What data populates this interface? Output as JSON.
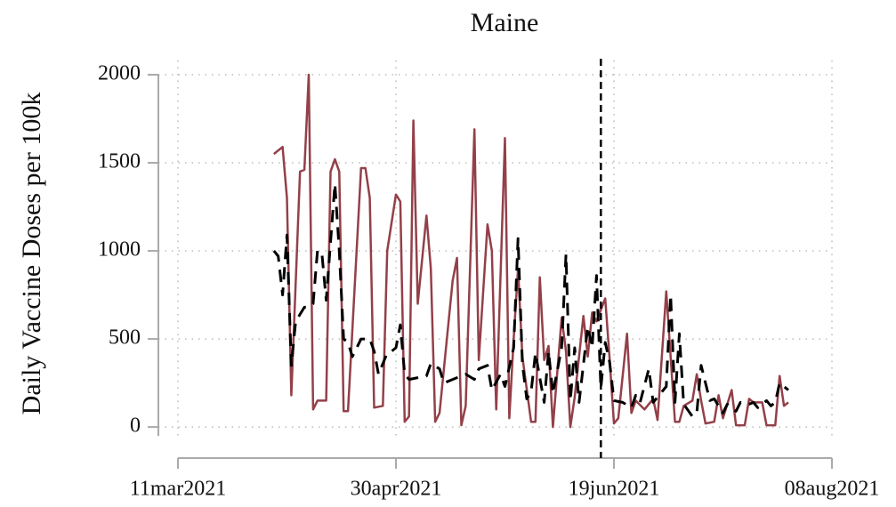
{
  "chart_data": {
    "type": "line",
    "title": "Maine",
    "y_label": "Daily Vaccine Doses per 100k",
    "xlim": [
      "2021-03-11",
      "2021-08-08"
    ],
    "xticks": [
      {
        "value": "2021-03-11",
        "label": "11mar2021"
      },
      {
        "value": "2021-04-30",
        "label": "30apr2021"
      },
      {
        "value": "2021-06-19",
        "label": "19jun2021"
      },
      {
        "value": "2021-08-08",
        "label": "08aug2021"
      }
    ],
    "ylim": [
      -50,
      2000
    ],
    "yticks": [
      0,
      500,
      1000,
      1500,
      2000
    ],
    "grid": true,
    "vline": "2021-06-16",
    "series": [
      {
        "color": "#934049",
        "dash": false,
        "x": [
          "2021-04-02",
          "2021-04-04",
          "2021-04-05",
          "2021-04-06",
          "2021-04-08",
          "2021-04-09",
          "2021-04-10",
          "2021-04-11",
          "2021-04-12",
          "2021-04-14",
          "2021-04-15",
          "2021-04-16",
          "2021-04-17",
          "2021-04-18",
          "2021-04-19",
          "2021-04-22",
          "2021-04-23",
          "2021-04-24",
          "2021-04-25",
          "2021-04-27",
          "2021-04-28",
          "2021-04-30",
          "2021-05-01",
          "2021-05-02",
          "2021-05-03",
          "2021-05-04",
          "2021-05-05",
          "2021-05-07",
          "2021-05-08",
          "2021-05-09",
          "2021-05-10",
          "2021-05-13",
          "2021-05-14",
          "2021-05-15",
          "2021-05-16",
          "2021-05-18",
          "2021-05-19",
          "2021-05-21",
          "2021-05-22",
          "2021-05-23",
          "2021-05-25",
          "2021-05-26",
          "2021-05-27",
          "2021-05-28",
          "2021-05-29",
          "2021-05-31",
          "2021-06-01",
          "2021-06-02",
          "2021-06-03",
          "2021-06-04",
          "2021-06-05",
          "2021-06-07",
          "2021-06-08",
          "2021-06-09",
          "2021-06-10",
          "2021-06-12",
          "2021-06-13",
          "2021-06-14",
          "2021-06-15",
          "2021-06-17",
          "2021-06-18",
          "2021-06-19",
          "2021-06-20",
          "2021-06-22",
          "2021-06-23",
          "2021-06-24",
          "2021-06-26",
          "2021-06-28",
          "2021-06-29",
          "2021-07-01",
          "2021-07-02",
          "2021-07-03",
          "2021-07-04",
          "2021-07-05",
          "2021-07-07",
          "2021-07-08",
          "2021-07-09",
          "2021-07-10",
          "2021-07-12",
          "2021-07-13",
          "2021-07-14",
          "2021-07-16",
          "2021-07-17",
          "2021-07-19",
          "2021-07-20",
          "2021-07-21",
          "2021-07-22",
          "2021-07-23",
          "2021-07-24",
          "2021-07-26",
          "2021-07-27",
          "2021-07-28",
          "2021-07-29"
        ],
        "values": [
          1550,
          1590,
          1300,
          180,
          1450,
          1460,
          2000,
          100,
          150,
          150,
          1450,
          1520,
          1450,
          90,
          90,
          1470,
          1470,
          1300,
          110,
          120,
          1000,
          1320,
          1280,
          30,
          60,
          1740,
          700,
          1200,
          900,
          30,
          80,
          830,
          960,
          10,
          120,
          1690,
          380,
          1150,
          1000,
          100,
          1640,
          50,
          500,
          900,
          400,
          30,
          30,
          850,
          380,
          460,
          0,
          620,
          430,
          0,
          170,
          630,
          400,
          650,
          600,
          730,
          390,
          20,
          50,
          530,
          80,
          150,
          100,
          160,
          40,
          770,
          400,
          30,
          30,
          120,
          150,
          300,
          150,
          20,
          30,
          180,
          50,
          210,
          10,
          10,
          160,
          140,
          140,
          140,
          10,
          10,
          290,
          120,
          140
        ]
      },
      {
        "color": "#000000",
        "dash": true,
        "x": [
          "2021-04-02",
          "2021-04-03",
          "2021-04-04",
          "2021-04-05",
          "2021-04-06",
          "2021-04-07",
          "2021-04-09",
          "2021-04-10",
          "2021-04-11",
          "2021-04-12",
          "2021-04-13",
          "2021-04-14",
          "2021-04-16",
          "2021-04-17",
          "2021-04-18",
          "2021-04-19",
          "2021-04-20",
          "2021-04-22",
          "2021-04-24",
          "2021-04-25",
          "2021-04-26",
          "2021-04-28",
          "2021-04-29",
          "2021-04-30",
          "2021-05-01",
          "2021-05-02",
          "2021-05-03",
          "2021-05-05",
          "2021-05-07",
          "2021-05-08",
          "2021-05-10",
          "2021-05-11",
          "2021-05-13",
          "2021-05-14",
          "2021-05-16",
          "2021-05-18",
          "2021-05-19",
          "2021-05-21",
          "2021-05-22",
          "2021-05-24",
          "2021-05-25",
          "2021-05-27",
          "2021-05-28",
          "2021-05-29",
          "2021-05-30",
          "2021-05-31",
          "2021-06-01",
          "2021-06-03",
          "2021-06-04",
          "2021-06-05",
          "2021-06-07",
          "2021-06-08",
          "2021-06-09",
          "2021-06-10",
          "2021-06-11",
          "2021-06-13",
          "2021-06-14",
          "2021-06-15",
          "2021-06-16",
          "2021-06-17",
          "2021-06-18",
          "2021-06-19",
          "2021-06-21",
          "2021-06-23",
          "2021-06-24",
          "2021-06-25",
          "2021-06-27",
          "2021-06-28",
          "2021-06-30",
          "2021-07-01",
          "2021-07-02",
          "2021-07-03",
          "2021-07-04",
          "2021-07-05",
          "2021-07-07",
          "2021-07-08",
          "2021-07-09",
          "2021-07-11",
          "2021-07-12",
          "2021-07-14",
          "2021-07-15",
          "2021-07-17",
          "2021-07-18",
          "2021-07-20",
          "2021-07-21",
          "2021-07-22",
          "2021-07-24",
          "2021-07-25",
          "2021-07-26",
          "2021-07-27",
          "2021-07-29"
        ],
        "values": [
          1000,
          970,
          750,
          1090,
          350,
          600,
          680,
          680,
          700,
          1000,
          990,
          720,
          1380,
          1000,
          500,
          480,
          400,
          500,
          500,
          430,
          300,
          420,
          430,
          450,
          580,
          300,
          270,
          280,
          290,
          360,
          330,
          250,
          270,
          280,
          300,
          270,
          330,
          350,
          210,
          300,
          230,
          450,
          1070,
          360,
          160,
          200,
          420,
          140,
          430,
          190,
          450,
          980,
          150,
          450,
          140,
          570,
          450,
          860,
          220,
          480,
          370,
          150,
          140,
          110,
          180,
          140,
          330,
          140,
          200,
          230,
          750,
          140,
          530,
          130,
          60,
          80,
          350,
          150,
          160,
          80,
          130,
          90,
          140,
          130,
          140,
          110,
          150,
          120,
          140,
          250,
          210
        ]
      }
    ]
  }
}
